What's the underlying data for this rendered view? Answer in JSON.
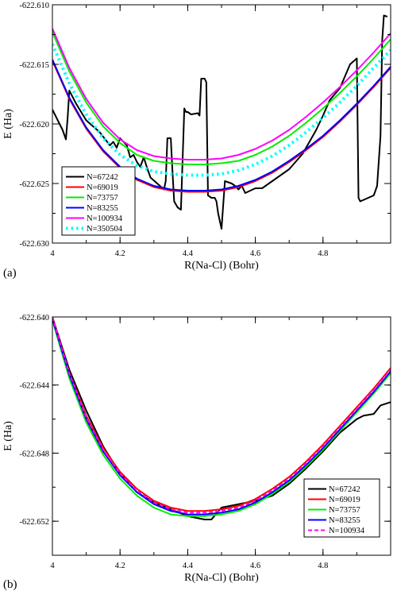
{
  "chart_data": [
    {
      "type": "line",
      "panel_label": "(a)",
      "xlabel": "R(Na-Cl) (Bohr)",
      "ylabel": "E (Ha)",
      "xlim": [
        4.0,
        5.0
      ],
      "ylim": [
        -622.63,
        -622.61
      ],
      "x_ticks": [
        4.0,
        4.2,
        4.4,
        4.6,
        4.8
      ],
      "x_tick_labels": [
        "4",
        "4.2",
        "4.4",
        "4.6",
        "4.8"
      ],
      "y_ticks": [
        -622.63,
        -622.625,
        -622.62,
        -622.615,
        -622.61
      ],
      "y_tick_labels": [
        "-622.630",
        "-622.625",
        "-622.620",
        "-622.615",
        "-622.610"
      ],
      "legend": {
        "position": "bottom-left"
      },
      "series": [
        {
          "name": "N=67242",
          "color": "#000000",
          "style": "solid",
          "x": [
            4.0,
            4.03,
            4.04,
            4.045,
            4.05,
            4.07,
            4.1,
            4.14,
            4.17,
            4.18,
            4.19,
            4.2,
            4.22,
            4.23,
            4.24,
            4.25,
            4.26,
            4.27,
            4.28,
            4.29,
            4.31,
            4.33,
            4.335,
            4.34,
            4.35,
            4.355,
            4.36,
            4.37,
            4.38,
            4.39,
            4.395,
            4.4,
            4.41,
            4.43,
            4.435,
            4.44,
            4.45,
            4.455,
            4.46,
            4.47,
            4.48,
            4.485,
            4.49,
            4.5,
            4.51,
            4.53,
            4.54,
            4.55,
            4.56,
            4.57,
            4.6,
            4.62,
            4.63,
            4.66,
            4.7,
            4.74,
            4.78,
            4.8,
            4.82,
            4.85,
            4.88,
            4.9,
            4.905,
            4.91,
            4.95,
            4.96,
            4.97,
            4.975,
            4.98,
            4.99
          ],
          "y": [
            -622.6188,
            -622.6205,
            -622.6213,
            -622.6195,
            -622.6172,
            -622.6183,
            -622.6197,
            -622.6207,
            -622.6218,
            -622.6215,
            -622.622,
            -622.6212,
            -622.6218,
            -622.6228,
            -622.6226,
            -622.6232,
            -622.6236,
            -622.6228,
            -622.6237,
            -622.6245,
            -622.625,
            -622.6255,
            -622.6248,
            -622.6212,
            -622.6212,
            -622.624,
            -622.6265,
            -622.627,
            -622.6272,
            -622.6187,
            -622.619,
            -622.619,
            -622.6192,
            -622.6191,
            -622.6193,
            -622.6162,
            -622.6162,
            -622.6165,
            -622.626,
            -622.6262,
            -622.6262,
            -622.6265,
            -622.6275,
            -622.6288,
            -622.6248,
            -622.625,
            -622.6252,
            -622.6255,
            -622.6252,
            -622.6258,
            -622.6254,
            -622.6254,
            -622.6252,
            -622.6246,
            -622.6238,
            -622.6225,
            -622.6205,
            -622.6193,
            -622.618,
            -622.617,
            -622.615,
            -622.6145,
            -622.6262,
            -622.6265,
            -622.626,
            -622.6252,
            -622.621,
            -622.613,
            -622.6109,
            -622.611
          ]
        },
        {
          "name": "N=69019",
          "color": "#ff0000",
          "style": "solid",
          "x": [
            4.0,
            4.05,
            4.1,
            4.15,
            4.2,
            4.25,
            4.3,
            4.35,
            4.4,
            4.45,
            4.5,
            4.55,
            4.6,
            4.65,
            4.7,
            4.75,
            4.8,
            4.85,
            4.9,
            4.95,
            5.0
          ],
          "y": [
            -622.6147,
            -622.6179,
            -622.6204,
            -622.6223,
            -622.6237,
            -622.6247,
            -622.6253,
            -622.6256,
            -622.6257,
            -622.6257,
            -622.6256,
            -622.6253,
            -622.6248,
            -622.6241,
            -622.6232,
            -622.6222,
            -622.6211,
            -622.6198,
            -622.6184,
            -622.6169,
            -622.6153
          ]
        },
        {
          "name": "N=73757",
          "color": "#00ee00",
          "style": "solid",
          "x": [
            4.0,
            4.05,
            4.1,
            4.15,
            4.2,
            4.25,
            4.3,
            4.35,
            4.4,
            4.45,
            4.5,
            4.55,
            4.6,
            4.65,
            4.7,
            4.75,
            4.8,
            4.85,
            4.9,
            4.95,
            5.0
          ],
          "y": [
            -622.6123,
            -622.6156,
            -622.6182,
            -622.6202,
            -622.6216,
            -622.6226,
            -622.6231,
            -622.6233,
            -622.6234,
            -622.6234,
            -622.6233,
            -622.6231,
            -622.6226,
            -622.6219,
            -622.621,
            -622.6199,
            -622.6187,
            -622.6174,
            -622.616,
            -622.6145,
            -622.6129
          ]
        },
        {
          "name": "N=83255",
          "color": "#0000ff",
          "style": "solid",
          "x": [
            4.0,
            4.05,
            4.1,
            4.15,
            4.2,
            4.25,
            4.3,
            4.35,
            4.4,
            4.45,
            4.5,
            4.55,
            4.6,
            4.65,
            4.7,
            4.75,
            4.8,
            4.85,
            4.9,
            4.95,
            5.0
          ],
          "y": [
            -622.6146,
            -622.6178,
            -622.6203,
            -622.6222,
            -622.6236,
            -622.6246,
            -622.6252,
            -622.6255,
            -622.6256,
            -622.6256,
            -622.6255,
            -622.6252,
            -622.6247,
            -622.624,
            -622.6231,
            -622.6221,
            -622.621,
            -622.6197,
            -622.6183,
            -622.6168,
            -622.6152
          ]
        },
        {
          "name": "N=100934",
          "color": "#ff00ff",
          "style": "solid",
          "x": [
            4.0,
            4.05,
            4.1,
            4.15,
            4.2,
            4.25,
            4.3,
            4.35,
            4.4,
            4.45,
            4.5,
            4.55,
            4.6,
            4.65,
            4.7,
            4.75,
            4.8,
            4.85,
            4.9,
            4.95,
            5.0
          ],
          "y": [
            -622.612,
            -622.6153,
            -622.6179,
            -622.6199,
            -622.6213,
            -622.6222,
            -622.6227,
            -622.6229,
            -622.623,
            -622.623,
            -622.6229,
            -622.6226,
            -622.6221,
            -622.6214,
            -622.6205,
            -622.6194,
            -622.6182,
            -622.6169,
            -622.6155,
            -622.614,
            -622.6124
          ]
        },
        {
          "name": "N=350504",
          "color": "#00ffff",
          "style": "dotted",
          "x": [
            4.0,
            4.05,
            4.1,
            4.15,
            4.2,
            4.25,
            4.3,
            4.35,
            4.4,
            4.45,
            4.5,
            4.55,
            4.6,
            4.65,
            4.7,
            4.75,
            4.8,
            4.85,
            4.9,
            4.95,
            5.0
          ],
          "y": [
            -622.6133,
            -622.6166,
            -622.6192,
            -622.6212,
            -622.6226,
            -622.6235,
            -622.624,
            -622.6242,
            -622.6243,
            -622.6243,
            -622.6242,
            -622.6239,
            -622.6234,
            -622.6227,
            -622.6218,
            -622.6207,
            -622.6195,
            -622.6182,
            -622.6168,
            -622.6153,
            -622.6138
          ]
        }
      ]
    },
    {
      "type": "line",
      "panel_label": "(b)",
      "xlabel": "R(Na-Cl) (Bohr)",
      "ylabel": "E (Ha)",
      "xlim": [
        4.0,
        5.0
      ],
      "ylim": [
        -622.654,
        -622.64
      ],
      "x_ticks": [
        4.0,
        4.2,
        4.4,
        4.6,
        4.8
      ],
      "x_tick_labels": [
        "4",
        "4.2",
        "4.4",
        "4.6",
        "4.8"
      ],
      "y_ticks": [
        -622.652,
        -622.648,
        -622.644,
        -622.64
      ],
      "y_tick_labels": [
        "-622.652",
        "-622.648",
        "-622.644",
        "-622.640"
      ],
      "legend": {
        "position": "bottom-right"
      },
      "series": [
        {
          "name": "N=67242",
          "color": "#000000",
          "style": "solid",
          "x": [
            4.0,
            4.05,
            4.1,
            4.15,
            4.2,
            4.25,
            4.3,
            4.35,
            4.4,
            4.45,
            4.47,
            4.5,
            4.55,
            4.6,
            4.65,
            4.7,
            4.75,
            4.8,
            4.85,
            4.9,
            4.92,
            4.95,
            4.97,
            5.0
          ],
          "y": [
            -622.64,
            -622.6431,
            -622.6455,
            -622.6476,
            -622.6492,
            -622.6503,
            -622.6509,
            -622.6513,
            -622.6517,
            -622.6519,
            -622.6519,
            -622.6512,
            -622.651,
            -622.6508,
            -622.6505,
            -622.6498,
            -622.6489,
            -622.6479,
            -622.6468,
            -622.646,
            -622.6458,
            -622.6457,
            -622.6452,
            -622.645
          ]
        },
        {
          "name": "N=69019",
          "color": "#ff0000",
          "style": "solid",
          "x": [
            4.0,
            4.05,
            4.1,
            4.15,
            4.2,
            4.25,
            4.3,
            4.35,
            4.4,
            4.45,
            4.5,
            4.55,
            4.6,
            4.65,
            4.7,
            4.75,
            4.8,
            4.85,
            4.9,
            4.95,
            5.0
          ],
          "y": [
            -622.64,
            -622.6433,
            -622.6458,
            -622.6477,
            -622.6491,
            -622.6501,
            -622.6508,
            -622.6512,
            -622.6514,
            -622.6514,
            -622.6513,
            -622.6511,
            -622.6507,
            -622.6501,
            -622.6494,
            -622.6485,
            -622.6475,
            -622.6464,
            -622.6453,
            -622.6442,
            -622.643
          ]
        },
        {
          "name": "N=73757",
          "color": "#00ee00",
          "style": "solid",
          "x": [
            4.0,
            4.05,
            4.1,
            4.15,
            4.2,
            4.25,
            4.3,
            4.35,
            4.4,
            4.45,
            4.5,
            4.55,
            4.6,
            4.65,
            4.7,
            4.75,
            4.8,
            4.85,
            4.9,
            4.95,
            5.0
          ],
          "y": [
            -622.6402,
            -622.6436,
            -622.6462,
            -622.6481,
            -622.6495,
            -622.6505,
            -622.6512,
            -622.6516,
            -622.6517,
            -622.6517,
            -622.6516,
            -622.6514,
            -622.651,
            -622.6504,
            -622.6497,
            -622.6488,
            -622.6478,
            -622.6467,
            -622.6456,
            -622.6445,
            -622.6433
          ]
        },
        {
          "name": "N=83255",
          "color": "#0000ff",
          "style": "solid",
          "x": [
            4.0,
            4.05,
            4.1,
            4.15,
            4.2,
            4.25,
            4.3,
            4.35,
            4.4,
            4.45,
            4.5,
            4.55,
            4.6,
            4.65,
            4.7,
            4.75,
            4.8,
            4.85,
            4.9,
            4.95,
            5.0
          ],
          "y": [
            -622.6401,
            -622.6434,
            -622.646,
            -622.6479,
            -622.6493,
            -622.6503,
            -622.651,
            -622.6514,
            -622.6516,
            -622.6516,
            -622.6515,
            -622.6513,
            -622.6509,
            -622.6503,
            -622.6496,
            -622.6487,
            -622.6477,
            -622.6466,
            -622.6455,
            -622.6444,
            -622.6432
          ]
        },
        {
          "name": "N=100934",
          "color": "#ff00ff",
          "style": "dashed",
          "x": [
            4.0,
            4.05,
            4.1,
            4.15,
            4.2,
            4.25,
            4.3,
            4.35,
            4.4,
            4.45,
            4.5,
            4.55,
            4.6,
            4.65,
            4.7,
            4.75,
            4.8,
            4.85,
            4.9,
            4.95,
            5.0
          ],
          "y": [
            -622.64,
            -622.6433,
            -622.6459,
            -622.6478,
            -622.6492,
            -622.6502,
            -622.6509,
            -622.6513,
            -622.6515,
            -622.6515,
            -622.6514,
            -622.6512,
            -622.6508,
            -622.6502,
            -622.6495,
            -622.6486,
            -622.6476,
            -622.6465,
            -622.6454,
            -622.6443,
            -622.6431
          ]
        }
      ]
    }
  ]
}
